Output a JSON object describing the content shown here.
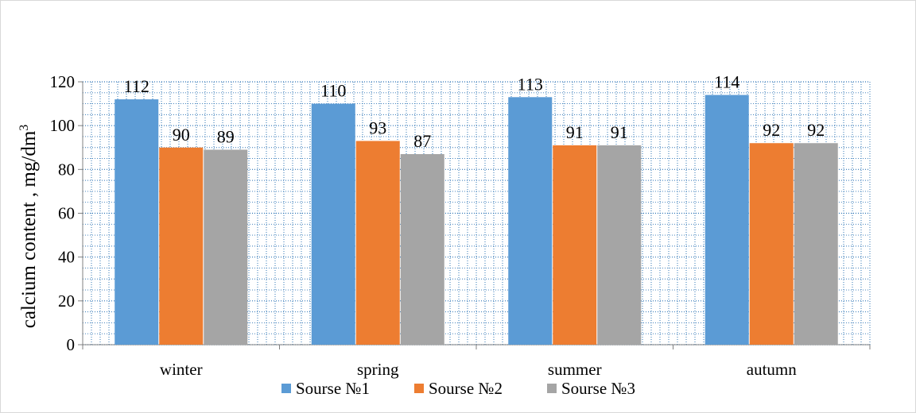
{
  "chart_data": {
    "type": "bar",
    "title": "",
    "xlabel": "",
    "ylabel": "calcium content , mg/dm",
    "ylabel_superscript": "3",
    "categories": [
      "winter",
      "spring",
      "summer",
      "autumn"
    ],
    "ylim": [
      0,
      120
    ],
    "yticks": [
      0,
      20,
      40,
      60,
      80,
      100,
      120
    ],
    "grid": true,
    "legend_position": "bottom",
    "series": [
      {
        "name": "Sourse №1",
        "color": "#5b9bd5",
        "values": [
          112,
          110,
          113,
          114
        ],
        "labels": [
          "112",
          "110",
          "113",
          "114"
        ]
      },
      {
        "name": "Sourse №2",
        "color": "#ed7d31",
        "values": [
          90,
          93,
          91,
          92
        ],
        "labels": [
          "90",
          "93",
          "91",
          "92"
        ]
      },
      {
        "name": "Sourse №3",
        "color": "#a5a5a5",
        "values": [
          89,
          87,
          91,
          92
        ],
        "labels": [
          "89",
          "87",
          "91",
          "92"
        ]
      }
    ]
  }
}
